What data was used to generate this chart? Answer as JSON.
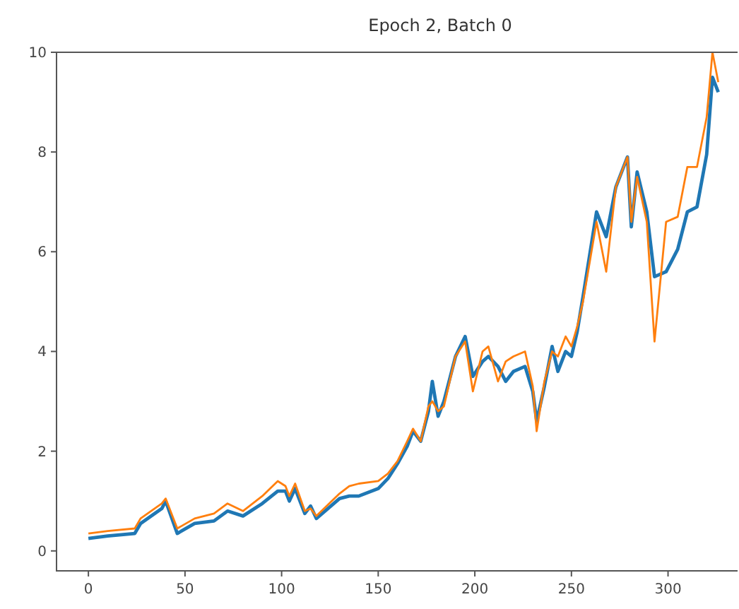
{
  "chart_data": {
    "type": "line",
    "title": "Epoch 2, Batch 0",
    "x": [
      0,
      10,
      24,
      27,
      38,
      40,
      46,
      55,
      65,
      72,
      80,
      90,
      98,
      102,
      104,
      107,
      112,
      115,
      118,
      130,
      135,
      140,
      150,
      155,
      160,
      165,
      168,
      172,
      176,
      178,
      181,
      184,
      190,
      195,
      199,
      204,
      207,
      212,
      216,
      220,
      226,
      230,
      232,
      236,
      240,
      243,
      247,
      250,
      253,
      256,
      263,
      268,
      273,
      279,
      281,
      284,
      289,
      293,
      299,
      305,
      310,
      315,
      320,
      323,
      326
    ],
    "series": [
      {
        "color": "#1f77b4",
        "values": [
          0.25,
          0.3,
          0.35,
          0.55,
          0.85,
          1.0,
          0.35,
          0.55,
          0.6,
          0.8,
          0.7,
          0.95,
          1.2,
          1.2,
          1.0,
          1.25,
          0.75,
          0.9,
          0.65,
          1.05,
          1.1,
          1.1,
          1.25,
          1.45,
          1.75,
          2.1,
          2.4,
          2.2,
          2.8,
          3.4,
          2.7,
          3.0,
          3.9,
          4.3,
          3.5,
          3.8,
          3.9,
          3.7,
          3.4,
          3.6,
          3.7,
          3.2,
          2.6,
          3.3,
          4.1,
          3.6,
          4.0,
          3.9,
          4.4,
          5.1,
          6.8,
          6.3,
          7.3,
          7.9,
          6.5,
          7.6,
          6.8,
          5.5,
          5.6,
          6.05,
          6.8,
          6.9,
          7.95,
          9.5,
          9.2
        ]
      },
      {
        "color": "#ff7f0e",
        "values": [
          0.35,
          0.4,
          0.45,
          0.65,
          0.95,
          1.05,
          0.45,
          0.65,
          0.75,
          0.95,
          0.8,
          1.1,
          1.4,
          1.3,
          1.1,
          1.35,
          0.8,
          0.85,
          0.7,
          1.15,
          1.3,
          1.35,
          1.4,
          1.55,
          1.8,
          2.2,
          2.45,
          2.2,
          2.9,
          3.0,
          2.8,
          2.9,
          3.9,
          4.2,
          3.2,
          4.0,
          4.1,
          3.4,
          3.8,
          3.9,
          4.0,
          3.3,
          2.4,
          3.4,
          4.0,
          3.9,
          4.3,
          4.1,
          4.5,
          5.0,
          6.6,
          5.6,
          7.3,
          7.9,
          6.6,
          7.5,
          6.6,
          4.2,
          6.6,
          6.7,
          7.7,
          7.7,
          8.7,
          10,
          9.4
        ]
      }
    ],
    "xlim": [
      -16.5,
      336
    ],
    "ylim": [
      -0.4,
      10
    ],
    "xticks": [
      0,
      50,
      100,
      150,
      200,
      250,
      300
    ],
    "yticks": [
      0,
      2,
      4,
      6,
      8,
      10
    ],
    "grid": false
  }
}
